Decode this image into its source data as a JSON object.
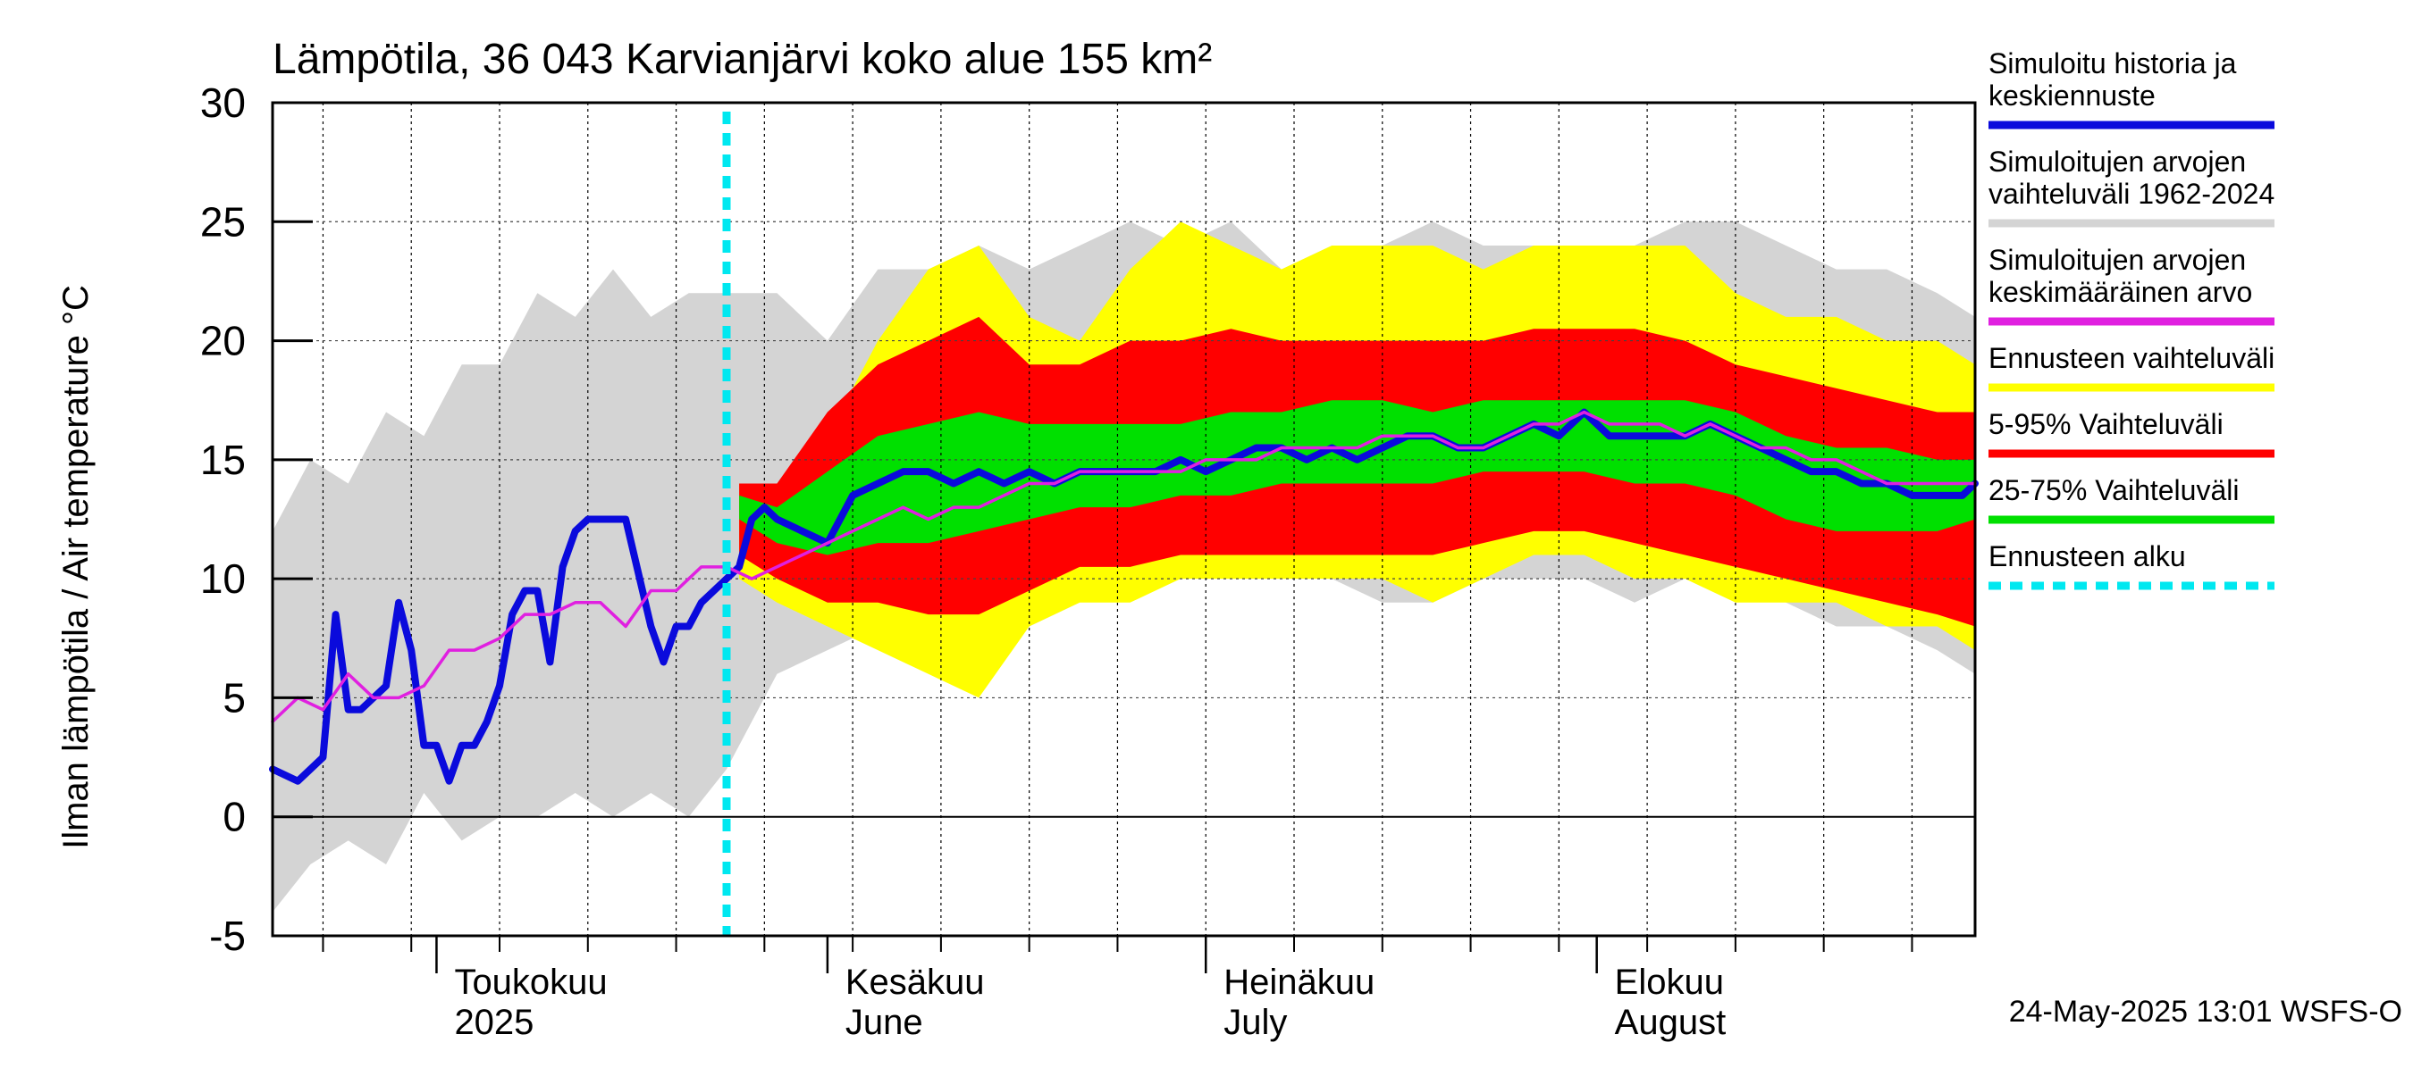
{
  "chart_data": {
    "type": "area",
    "title": "Lämpötila, 36 043 Karvianjärvi koko alue 155 km²",
    "ylabel": "Ilman lämpötila / Air temperature   °C",
    "ylim": [
      -5,
      30
    ],
    "yticks": [
      -5,
      0,
      5,
      10,
      15,
      20,
      25,
      30
    ],
    "grid": true,
    "legend_position": "right",
    "x_start": "2025-04-18",
    "x_end": "2025-08-31",
    "forecast_start": "2025-05-24",
    "month_labels": [
      {
        "fi": "Toukokuu",
        "en": "2025",
        "date": "2025-05-01"
      },
      {
        "fi": "Kesäkuu",
        "en": "June",
        "date": "2025-06-01"
      },
      {
        "fi": "Heinäkuu",
        "en": "July",
        "date": "2025-07-01"
      },
      {
        "fi": "Elokuu",
        "en": "August",
        "date": "2025-08-01"
      }
    ],
    "colors": {
      "history": "#0a0adc",
      "range": "#d4d4d4",
      "mean": "#e020e0",
      "forecast": "#ffff00",
      "p5_95": "#ff0000",
      "p25_75": "#00e000",
      "start": "#00e8f0"
    },
    "legend": [
      {
        "label": "Simuloitu historia ja keskiennuste",
        "color": "#0a0adc",
        "style": "line"
      },
      {
        "label": "Simuloitujen arvojen vaihteluväli 1962-2024",
        "color": "#d4d4d4",
        "style": "line"
      },
      {
        "label": "Simuloitujen arvojen keskimääräinen arvo",
        "color": "#e020e0",
        "style": "line"
      },
      {
        "label": "Ennusteen vaihteluväli",
        "color": "#ffff00",
        "style": "line"
      },
      {
        "label": "5-95% Vaihteluväli",
        "color": "#ff0000",
        "style": "line"
      },
      {
        "label": "25-75% Vaihteluväli",
        "color": "#00e000",
        "style": "line"
      },
      {
        "label": "Ennusteen alku",
        "color": "#00e8f0",
        "style": "dashed"
      }
    ],
    "footer": "24-May-2025 13:01 WSFS-O",
    "series": {
      "range_band": {
        "name": "Simuloitujen arvojen vaihteluväli 1962-2024",
        "x": [
          "2025-04-18",
          "2025-04-21",
          "2025-04-24",
          "2025-04-27",
          "2025-04-30",
          "2025-05-03",
          "2025-05-06",
          "2025-05-09",
          "2025-05-12",
          "2025-05-15",
          "2025-05-18",
          "2025-05-21",
          "2025-05-24",
          "2025-05-28",
          "2025-06-01",
          "2025-06-05",
          "2025-06-09",
          "2025-06-13",
          "2025-06-17",
          "2025-06-21",
          "2025-06-25",
          "2025-06-29",
          "2025-07-03",
          "2025-07-07",
          "2025-07-11",
          "2025-07-15",
          "2025-07-19",
          "2025-07-23",
          "2025-07-27",
          "2025-07-31",
          "2025-08-04",
          "2025-08-08",
          "2025-08-12",
          "2025-08-16",
          "2025-08-20",
          "2025-08-24",
          "2025-08-28",
          "2025-08-31"
        ],
        "lower": [
          -4,
          -2,
          -1,
          -2,
          1,
          -1,
          0,
          0,
          1,
          0,
          1,
          0,
          2,
          6,
          7,
          8,
          9,
          8,
          8,
          9,
          10,
          10,
          10,
          10,
          10,
          9,
          9,
          10,
          10,
          10,
          9,
          10,
          10,
          9,
          8,
          8,
          7,
          6
        ],
        "upper": [
          12,
          15,
          14,
          17,
          16,
          19,
          19,
          22,
          21,
          23,
          21,
          22,
          22,
          22,
          20,
          23,
          23,
          24,
          23,
          24,
          25,
          24,
          25,
          23,
          24,
          24,
          25,
          24,
          24,
          24,
          24,
          25,
          25,
          24,
          23,
          23,
          22,
          21
        ]
      },
      "forecast_band": {
        "name": "Ennusteen vaihteluväli",
        "x": [
          "2025-05-25",
          "2025-05-28",
          "2025-06-01",
          "2025-06-05",
          "2025-06-09",
          "2025-06-13",
          "2025-06-17",
          "2025-06-21",
          "2025-06-25",
          "2025-06-29",
          "2025-07-03",
          "2025-07-07",
          "2025-07-11",
          "2025-07-15",
          "2025-07-19",
          "2025-07-23",
          "2025-07-27",
          "2025-07-31",
          "2025-08-04",
          "2025-08-08",
          "2025-08-12",
          "2025-08-16",
          "2025-08-20",
          "2025-08-24",
          "2025-08-28",
          "2025-08-31"
        ],
        "lower": [
          10,
          9,
          8,
          7,
          6,
          5,
          8,
          9,
          9,
          10,
          10,
          10,
          10,
          10,
          9,
          10,
          11,
          11,
          10,
          10,
          9,
          9,
          9,
          8,
          8,
          7
        ],
        "upper": [
          14,
          14,
          16,
          20,
          23,
          24,
          21,
          20,
          23,
          25,
          24,
          23,
          24,
          24,
          24,
          23,
          24,
          24,
          24,
          24,
          22,
          21,
          21,
          20,
          20,
          19
        ]
      },
      "p5_95_band": {
        "name": "5-95% Vaihteluväli",
        "x": [
          "2025-05-25",
          "2025-05-28",
          "2025-06-01",
          "2025-06-05",
          "2025-06-09",
          "2025-06-13",
          "2025-06-17",
          "2025-06-21",
          "2025-06-25",
          "2025-06-29",
          "2025-07-03",
          "2025-07-07",
          "2025-07-11",
          "2025-07-15",
          "2025-07-19",
          "2025-07-23",
          "2025-07-27",
          "2025-07-31",
          "2025-08-04",
          "2025-08-08",
          "2025-08-12",
          "2025-08-16",
          "2025-08-20",
          "2025-08-24",
          "2025-08-28",
          "2025-08-31"
        ],
        "lower": [
          11,
          10,
          9,
          9,
          8.5,
          8.5,
          9.5,
          10.5,
          10.5,
          11,
          11,
          11,
          11,
          11,
          11,
          11.5,
          12,
          12,
          11.5,
          11,
          10.5,
          10,
          9.5,
          9,
          8.5,
          8
        ],
        "upper": [
          14,
          14,
          17,
          19,
          20,
          21,
          19,
          19,
          20,
          20,
          20.5,
          20,
          20,
          20,
          20,
          20,
          20.5,
          20.5,
          20.5,
          20,
          19,
          18.5,
          18,
          17.5,
          17,
          17
        ]
      },
      "p25_75_band": {
        "name": "25-75% Vaihteluväli",
        "x": [
          "2025-05-25",
          "2025-05-28",
          "2025-06-01",
          "2025-06-05",
          "2025-06-09",
          "2025-06-13",
          "2025-06-17",
          "2025-06-21",
          "2025-06-25",
          "2025-06-29",
          "2025-07-03",
          "2025-07-07",
          "2025-07-11",
          "2025-07-15",
          "2025-07-19",
          "2025-07-23",
          "2025-07-27",
          "2025-07-31",
          "2025-08-04",
          "2025-08-08",
          "2025-08-12",
          "2025-08-16",
          "2025-08-20",
          "2025-08-24",
          "2025-08-28",
          "2025-08-31"
        ],
        "lower": [
          12.5,
          11.5,
          11,
          11.5,
          11.5,
          12,
          12.5,
          13,
          13,
          13.5,
          13.5,
          14,
          14,
          14,
          14,
          14.5,
          14.5,
          14.5,
          14,
          14,
          13.5,
          12.5,
          12,
          12,
          12,
          12.5
        ],
        "upper": [
          13.5,
          13,
          14.5,
          16,
          16.5,
          17,
          16.5,
          16.5,
          16.5,
          16.5,
          17,
          17,
          17.5,
          17.5,
          17,
          17.5,
          17.5,
          17.5,
          17.5,
          17.5,
          17,
          16,
          15.5,
          15.5,
          15,
          15
        ]
      },
      "history": {
        "name": "Simuloitu historia ja keskiennuste",
        "x": [
          "2025-04-18",
          "2025-04-20",
          "2025-04-22",
          "2025-04-23",
          "2025-04-24",
          "2025-04-25",
          "2025-04-27",
          "2025-04-28",
          "2025-04-29",
          "2025-04-30",
          "2025-05-01",
          "2025-05-02",
          "2025-05-03",
          "2025-05-04",
          "2025-05-05",
          "2025-05-06",
          "2025-05-07",
          "2025-05-08",
          "2025-05-09",
          "2025-05-10",
          "2025-05-11",
          "2025-05-12",
          "2025-05-13",
          "2025-05-14",
          "2025-05-16",
          "2025-05-18",
          "2025-05-19",
          "2025-05-20",
          "2025-05-21",
          "2025-05-22",
          "2025-05-23",
          "2025-05-24",
          "2025-05-25",
          "2025-05-26",
          "2025-05-27",
          "2025-05-28",
          "2025-05-30",
          "2025-06-01",
          "2025-06-03",
          "2025-06-05",
          "2025-06-07",
          "2025-06-09",
          "2025-06-11",
          "2025-06-13",
          "2025-06-15",
          "2025-06-17",
          "2025-06-19",
          "2025-06-21",
          "2025-06-23",
          "2025-06-25",
          "2025-06-27",
          "2025-06-29",
          "2025-07-01",
          "2025-07-03",
          "2025-07-05",
          "2025-07-07",
          "2025-07-09",
          "2025-07-11",
          "2025-07-13",
          "2025-07-15",
          "2025-07-17",
          "2025-07-19",
          "2025-07-21",
          "2025-07-23",
          "2025-07-25",
          "2025-07-27",
          "2025-07-29",
          "2025-07-31",
          "2025-08-02",
          "2025-08-04",
          "2025-08-06",
          "2025-08-08",
          "2025-08-10",
          "2025-08-12",
          "2025-08-14",
          "2025-08-16",
          "2025-08-18",
          "2025-08-20",
          "2025-08-22",
          "2025-08-24",
          "2025-08-26",
          "2025-08-28",
          "2025-08-30",
          "2025-08-31"
        ],
        "y": [
          2,
          1.5,
          2.5,
          8.5,
          4.5,
          4.5,
          5.5,
          9,
          7,
          3,
          3,
          1.5,
          3,
          3,
          4,
          5.5,
          8.5,
          9.5,
          9.5,
          6.5,
          10.5,
          12,
          12.5,
          12.5,
          12.5,
          8,
          6.5,
          8,
          8,
          9,
          9.5,
          10,
          10.5,
          12.5,
          13,
          12.5,
          12,
          11.5,
          13.5,
          14,
          14.5,
          14.5,
          14,
          14.5,
          14,
          14.5,
          14,
          14.5,
          14.5,
          14.5,
          14.5,
          15,
          14.5,
          15,
          15.5,
          15.5,
          15,
          15.5,
          15,
          15.5,
          16,
          16,
          15.5,
          15.5,
          16,
          16.5,
          16,
          17,
          16,
          16,
          16,
          16,
          16.5,
          16,
          15.5,
          15,
          14.5,
          14.5,
          14,
          14,
          13.5,
          13.5,
          13.5,
          14
        ]
      },
      "mean": {
        "name": "Simuloitujen arvojen keskimääräinen arvo",
        "x": [
          "2025-04-18",
          "2025-04-20",
          "2025-04-22",
          "2025-04-24",
          "2025-04-26",
          "2025-04-28",
          "2025-04-30",
          "2025-05-02",
          "2025-05-04",
          "2025-05-06",
          "2025-05-08",
          "2025-05-10",
          "2025-05-12",
          "2025-05-14",
          "2025-05-16",
          "2025-05-18",
          "2025-05-20",
          "2025-05-22",
          "2025-05-24",
          "2025-05-26",
          "2025-05-28",
          "2025-05-30",
          "2025-06-01",
          "2025-06-03",
          "2025-06-05",
          "2025-06-07",
          "2025-06-09",
          "2025-06-11",
          "2025-06-13",
          "2025-06-15",
          "2025-06-17",
          "2025-06-19",
          "2025-06-21",
          "2025-06-23",
          "2025-06-25",
          "2025-06-27",
          "2025-06-29",
          "2025-07-01",
          "2025-07-03",
          "2025-07-05",
          "2025-07-07",
          "2025-07-09",
          "2025-07-11",
          "2025-07-13",
          "2025-07-15",
          "2025-07-17",
          "2025-07-19",
          "2025-07-21",
          "2025-07-23",
          "2025-07-25",
          "2025-07-27",
          "2025-07-29",
          "2025-07-31",
          "2025-08-02",
          "2025-08-04",
          "2025-08-06",
          "2025-08-08",
          "2025-08-10",
          "2025-08-12",
          "2025-08-14",
          "2025-08-16",
          "2025-08-18",
          "2025-08-20",
          "2025-08-22",
          "2025-08-24",
          "2025-08-26",
          "2025-08-28",
          "2025-08-30",
          "2025-08-31"
        ],
        "y": [
          4,
          5,
          4.5,
          6,
          5,
          5,
          5.5,
          7,
          7,
          7.5,
          8.5,
          8.5,
          9,
          9,
          8,
          9.5,
          9.5,
          10.5,
          10.5,
          10,
          10.5,
          11,
          11.5,
          12,
          12.5,
          13,
          12.5,
          13,
          13,
          13.5,
          14,
          14,
          14.5,
          14.5,
          14.5,
          14.5,
          14.5,
          15,
          15,
          15,
          15.5,
          15.5,
          15.5,
          15.5,
          16,
          16,
          16,
          15.5,
          15.5,
          16,
          16.5,
          16.5,
          17,
          16.5,
          16.5,
          16.5,
          16,
          16.5,
          16,
          15.5,
          15.5,
          15,
          15,
          14.5,
          14,
          14,
          14,
          14,
          14
        ]
      }
    }
  }
}
